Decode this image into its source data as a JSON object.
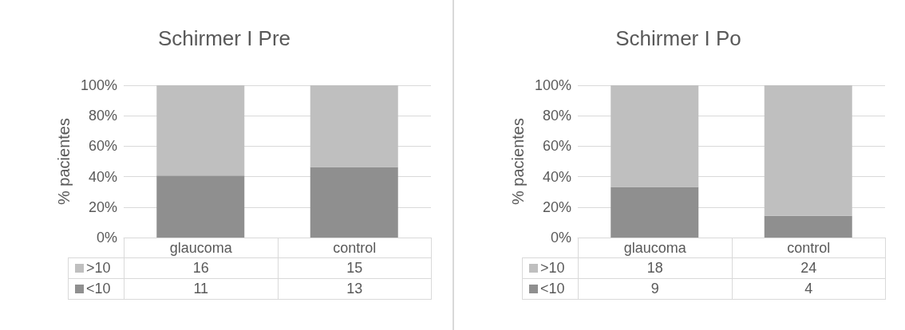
{
  "chart_data": [
    {
      "type": "bar",
      "title": "Schirmer I Pre",
      "ylabel": "% pacientes",
      "categories": [
        "glaucoma",
        "control"
      ],
      "stacked": true,
      "ylim": [
        0,
        100
      ],
      "yticks": [
        {
          "value": 0,
          "label": "0%"
        },
        {
          "value": 20,
          "label": "20%"
        },
        {
          "value": 40,
          "label": "40%"
        },
        {
          "value": 60,
          "label": "60%"
        },
        {
          "value": 80,
          "label": "80%"
        },
        {
          "value": 100,
          "label": "100%"
        }
      ],
      "grid": "y",
      "legend": "bottom left",
      "series": [
        {
          "name": "<10",
          "color": "#8f8f8f",
          "values": [
            40.7,
            46.4
          ]
        },
        {
          "name": ">10",
          "color": "#bfbfbf",
          "values": [
            59.3,
            53.6
          ]
        }
      ],
      "annotations": [
        "16",
        "15",
        "11",
        "13"
      ]
    },
    {
      "type": "bar",
      "title": "Schirmer I Po",
      "ylabel": "% pacientes",
      "categories": [
        "glaucoma",
        "control"
      ],
      "stacked": true,
      "ylim": [
        0,
        100
      ],
      "yticks": [
        {
          "value": 0,
          "label": "0%"
        },
        {
          "value": 20,
          "label": "20%"
        },
        {
          "value": 40,
          "label": "40%"
        },
        {
          "value": 60,
          "label": "60%"
        },
        {
          "value": 80,
          "label": "80%"
        },
        {
          "value": 100,
          "label": "100%"
        }
      ],
      "grid": "y",
      "legend": "bottom left",
      "series": [
        {
          "name": "<10",
          "color": "#8f8f8f",
          "values": [
            33.3,
            14.3
          ]
        },
        {
          "name": ">10",
          "color": "#bfbfbf",
          "values": [
            66.7,
            85.7
          ]
        }
      ],
      "annotations": [
        "18",
        "24",
        "9",
        "4"
      ]
    }
  ]
}
